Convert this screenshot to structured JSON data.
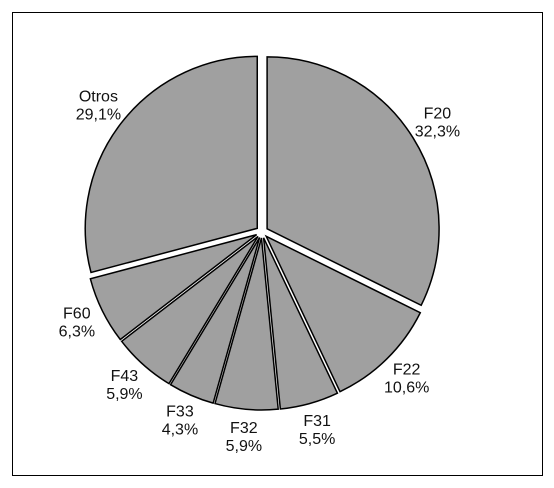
{
  "chart_data": {
    "type": "pie",
    "categories": [
      "F20",
      "F22",
      "F31",
      "F32",
      "F33",
      "F43",
      "F60",
      "Otros"
    ],
    "values": [
      32.3,
      10.6,
      5.5,
      5.9,
      4.3,
      5.9,
      6.3,
      29.1
    ],
    "value_labels": [
      "32,3%",
      "10,6%",
      "5,5%",
      "5,9%",
      "4,3%",
      "5,9%",
      "6,3%",
      "29,1%"
    ],
    "color": "#a0a0a0"
  }
}
